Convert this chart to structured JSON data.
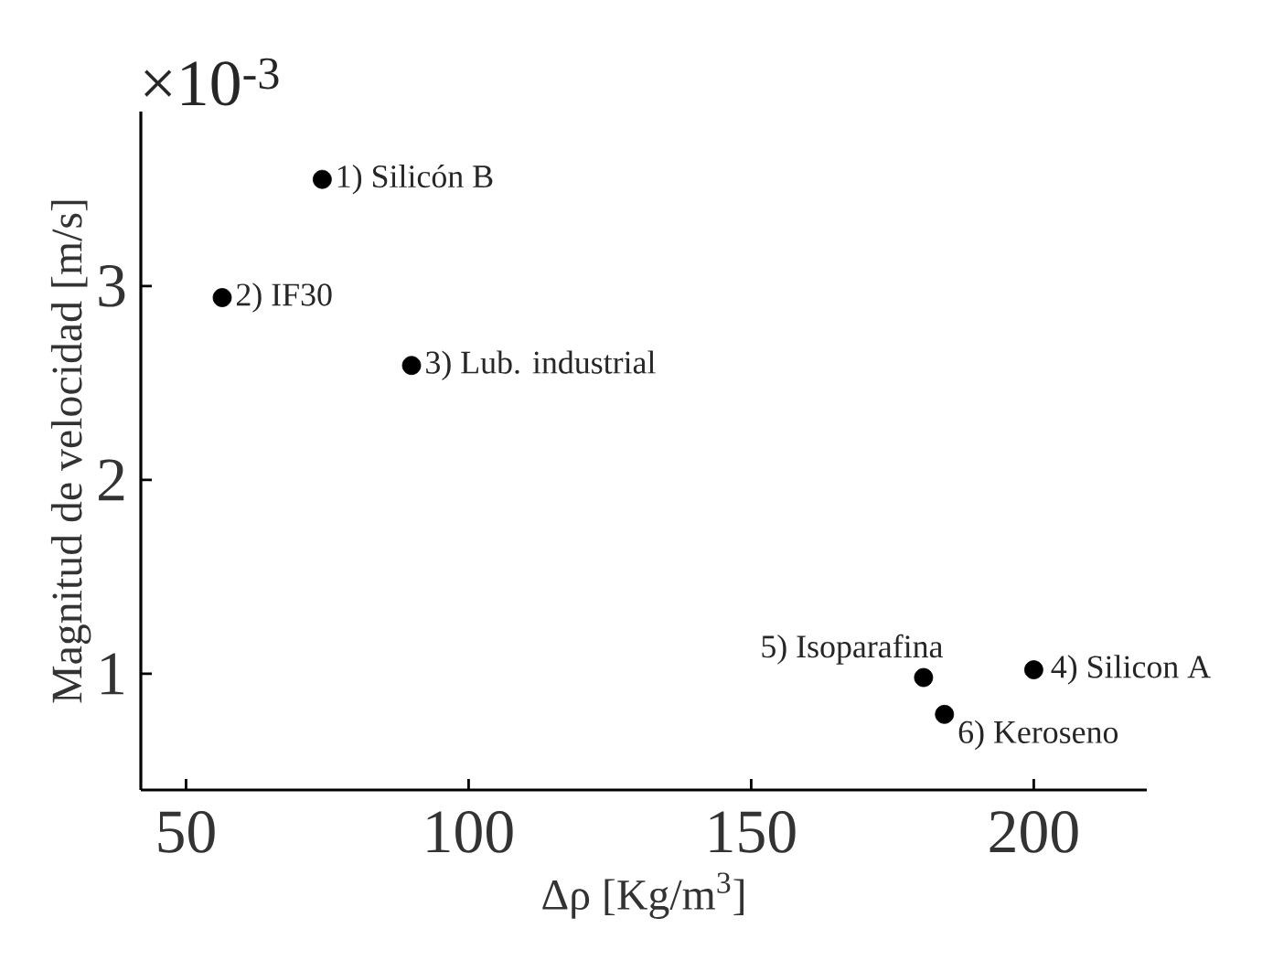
{
  "chart_data": {
    "type": "scatter",
    "xlabel": "Δρ [Kg/m$^{3}$]",
    "ylabel": "Magnitud de velocidad [m/s]",
    "x": [
      74.1,
      56.4,
      89.9,
      200,
      180.5,
      184.2
    ],
    "values": [
      3.55,
      2.94,
      2.59,
      1.02,
      0.98,
      0.79
    ],
    "color": "#000000",
    "xlim": [
      42,
      220
    ],
    "ylim": [
      0.4,
      3.9
    ],
    "xticks": [
      50,
      100,
      150,
      200
    ],
    "yticks": [
      1,
      2,
      3
    ],
    "annotations": [
      "×10$^{-3}$",
      {
        "text": "1) Silicón B",
        "x": 74.1,
        "y": 3.55
      },
      {
        "text": "2) IF30",
        "x": 56.4,
        "y": 2.94
      },
      {
        "text": "3) Lub. industrial",
        "x": 89.9,
        "y": 2.59
      },
      {
        "text": "4) Silicon A",
        "x": 200,
        "y": 1.02
      },
      {
        "text": "5) Isoparafina",
        "x": 180.5,
        "y": 0.98
      },
      {
        "text": "6) Keroseno",
        "x": 184.2,
        "y": 0.79
      }
    ]
  }
}
